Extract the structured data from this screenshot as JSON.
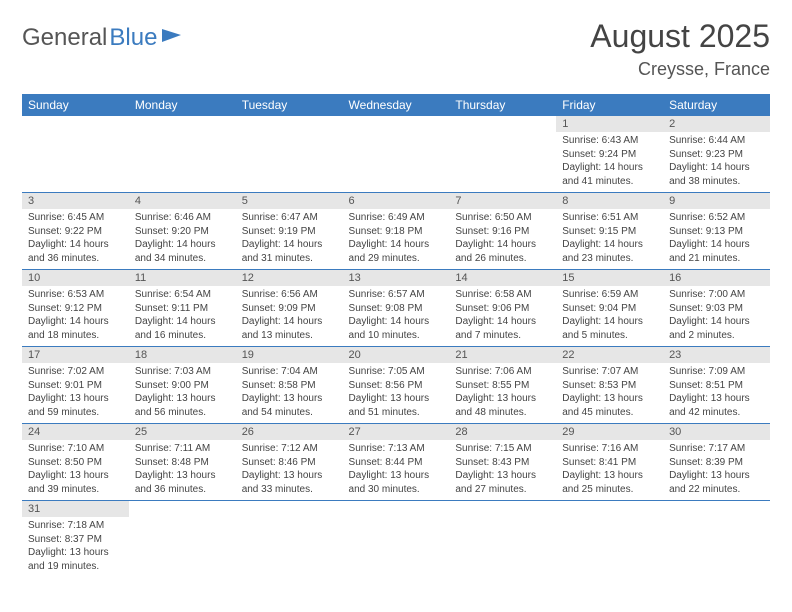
{
  "logo": {
    "part1": "General",
    "part2": "Blue"
  },
  "title": "August 2025",
  "location": "Creysse, France",
  "colors": {
    "header_bg": "#3b7bbf",
    "header_text": "#ffffff",
    "daynum_bg": "#e6e6e6",
    "cell_border": "#3b7bbf",
    "body_text": "#444444"
  },
  "weekdays": [
    "Sunday",
    "Monday",
    "Tuesday",
    "Wednesday",
    "Thursday",
    "Friday",
    "Saturday"
  ],
  "weeks": [
    [
      null,
      null,
      null,
      null,
      null,
      {
        "n": "1",
        "sr": "6:43 AM",
        "ss": "9:24 PM",
        "dl": "14 hours and 41 minutes."
      },
      {
        "n": "2",
        "sr": "6:44 AM",
        "ss": "9:23 PM",
        "dl": "14 hours and 38 minutes."
      }
    ],
    [
      {
        "n": "3",
        "sr": "6:45 AM",
        "ss": "9:22 PM",
        "dl": "14 hours and 36 minutes."
      },
      {
        "n": "4",
        "sr": "6:46 AM",
        "ss": "9:20 PM",
        "dl": "14 hours and 34 minutes."
      },
      {
        "n": "5",
        "sr": "6:47 AM",
        "ss": "9:19 PM",
        "dl": "14 hours and 31 minutes."
      },
      {
        "n": "6",
        "sr": "6:49 AM",
        "ss": "9:18 PM",
        "dl": "14 hours and 29 minutes."
      },
      {
        "n": "7",
        "sr": "6:50 AM",
        "ss": "9:16 PM",
        "dl": "14 hours and 26 minutes."
      },
      {
        "n": "8",
        "sr": "6:51 AM",
        "ss": "9:15 PM",
        "dl": "14 hours and 23 minutes."
      },
      {
        "n": "9",
        "sr": "6:52 AM",
        "ss": "9:13 PM",
        "dl": "14 hours and 21 minutes."
      }
    ],
    [
      {
        "n": "10",
        "sr": "6:53 AM",
        "ss": "9:12 PM",
        "dl": "14 hours and 18 minutes."
      },
      {
        "n": "11",
        "sr": "6:54 AM",
        "ss": "9:11 PM",
        "dl": "14 hours and 16 minutes."
      },
      {
        "n": "12",
        "sr": "6:56 AM",
        "ss": "9:09 PM",
        "dl": "14 hours and 13 minutes."
      },
      {
        "n": "13",
        "sr": "6:57 AM",
        "ss": "9:08 PM",
        "dl": "14 hours and 10 minutes."
      },
      {
        "n": "14",
        "sr": "6:58 AM",
        "ss": "9:06 PM",
        "dl": "14 hours and 7 minutes."
      },
      {
        "n": "15",
        "sr": "6:59 AM",
        "ss": "9:04 PM",
        "dl": "14 hours and 5 minutes."
      },
      {
        "n": "16",
        "sr": "7:00 AM",
        "ss": "9:03 PM",
        "dl": "14 hours and 2 minutes."
      }
    ],
    [
      {
        "n": "17",
        "sr": "7:02 AM",
        "ss": "9:01 PM",
        "dl": "13 hours and 59 minutes."
      },
      {
        "n": "18",
        "sr": "7:03 AM",
        "ss": "9:00 PM",
        "dl": "13 hours and 56 minutes."
      },
      {
        "n": "19",
        "sr": "7:04 AM",
        "ss": "8:58 PM",
        "dl": "13 hours and 54 minutes."
      },
      {
        "n": "20",
        "sr": "7:05 AM",
        "ss": "8:56 PM",
        "dl": "13 hours and 51 minutes."
      },
      {
        "n": "21",
        "sr": "7:06 AM",
        "ss": "8:55 PM",
        "dl": "13 hours and 48 minutes."
      },
      {
        "n": "22",
        "sr": "7:07 AM",
        "ss": "8:53 PM",
        "dl": "13 hours and 45 minutes."
      },
      {
        "n": "23",
        "sr": "7:09 AM",
        "ss": "8:51 PM",
        "dl": "13 hours and 42 minutes."
      }
    ],
    [
      {
        "n": "24",
        "sr": "7:10 AM",
        "ss": "8:50 PM",
        "dl": "13 hours and 39 minutes."
      },
      {
        "n": "25",
        "sr": "7:11 AM",
        "ss": "8:48 PM",
        "dl": "13 hours and 36 minutes."
      },
      {
        "n": "26",
        "sr": "7:12 AM",
        "ss": "8:46 PM",
        "dl": "13 hours and 33 minutes."
      },
      {
        "n": "27",
        "sr": "7:13 AM",
        "ss": "8:44 PM",
        "dl": "13 hours and 30 minutes."
      },
      {
        "n": "28",
        "sr": "7:15 AM",
        "ss": "8:43 PM",
        "dl": "13 hours and 27 minutes."
      },
      {
        "n": "29",
        "sr": "7:16 AM",
        "ss": "8:41 PM",
        "dl": "13 hours and 25 minutes."
      },
      {
        "n": "30",
        "sr": "7:17 AM",
        "ss": "8:39 PM",
        "dl": "13 hours and 22 minutes."
      }
    ],
    [
      {
        "n": "31",
        "sr": "7:18 AM",
        "ss": "8:37 PM",
        "dl": "13 hours and 19 minutes."
      },
      null,
      null,
      null,
      null,
      null,
      null
    ]
  ],
  "labels": {
    "sunrise": "Sunrise: ",
    "sunset": "Sunset: ",
    "daylight": "Daylight: "
  }
}
